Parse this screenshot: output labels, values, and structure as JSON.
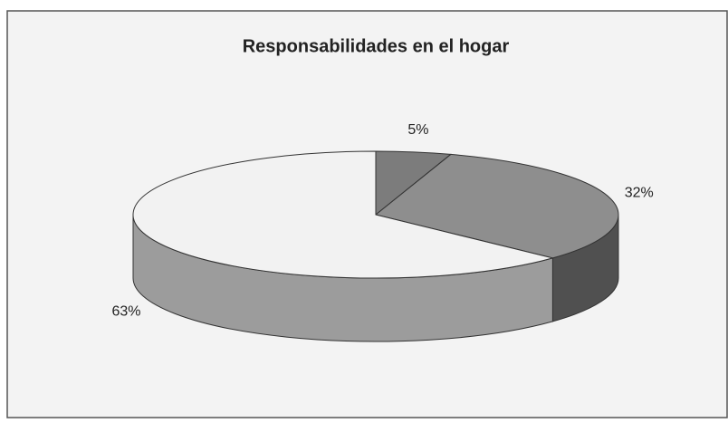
{
  "chart_data": {
    "type": "pie",
    "title": "Responsabilidades en el hogar",
    "values": [
      5,
      32,
      63
    ],
    "value_labels": [
      "5%",
      "32%",
      "63%"
    ],
    "colors": [
      "#7c7c7c",
      "#8e8e8e",
      "#f2f2f2"
    ],
    "side_colors": [
      "#5a5a5a",
      "#505050",
      "#9c9c9c"
    ]
  }
}
